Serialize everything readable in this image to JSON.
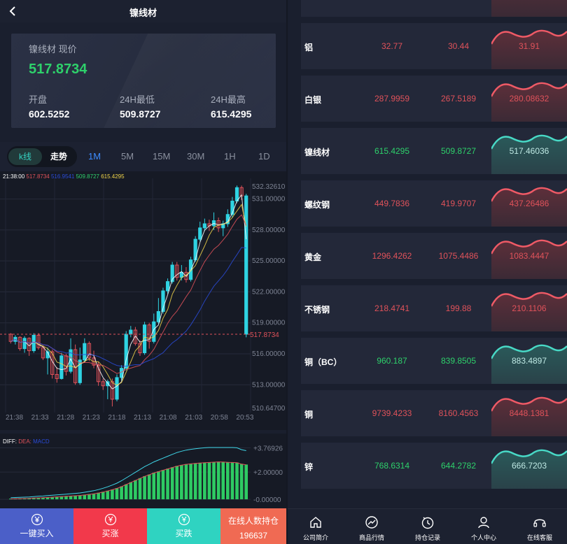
{
  "header": {
    "title": "镍线材",
    "back_label": ""
  },
  "price_card": {
    "label": "镍线材 现价",
    "price": "517.8734",
    "open_label": "开盘",
    "open_value": "602.5252",
    "low_label": "24H最低",
    "low_value": "509.8727",
    "high_label": "24H最高",
    "high_value": "615.4295"
  },
  "chart_tabs": {
    "segment": [
      "k线",
      "走势"
    ],
    "timeframes": [
      "1M",
      "5M",
      "15M",
      "30M",
      "1H",
      "1D"
    ],
    "active_timeframe": "1M"
  },
  "chart_legend": {
    "time": "21:38:00",
    "items": [
      {
        "text": "517.8734",
        "color": "#e0525a"
      },
      {
        "text": "516.9541",
        "color": "#2a4bd8"
      },
      {
        "text": "509.8727",
        "color": "#2ed16b"
      },
      {
        "text": "615.4295",
        "color": "#f1d54a"
      }
    ]
  },
  "macd_legend": {
    "items": [
      {
        "text": "DIFF:",
        "color": "#ffffff"
      },
      {
        "text": "DEA:",
        "color": "#e0525a"
      },
      {
        "text": "MACD",
        "color": "#2a4bd8"
      }
    ]
  },
  "chart_data": [
    {
      "type": "candlestick",
      "title": "",
      "x_tick_labels": [
        "21:38",
        "21:33",
        "21:28",
        "21:23",
        "21:18",
        "21:13",
        "21:08",
        "21:03",
        "20:58",
        "20:53"
      ],
      "y_tick_labels": [
        "532.32610",
        "531.00000",
        "528.00000",
        "525.00000",
        "522.00000",
        "519.00000",
        "516.00000",
        "513.00000",
        "510.64700"
      ],
      "ylim": [
        510.647,
        532.3261
      ],
      "current_price_label": "517.8734",
      "candles": [
        [
          517.9,
          517.2,
          518.0,
          517.0
        ],
        [
          517.2,
          517.6,
          517.8,
          516.9
        ],
        [
          517.6,
          516.5,
          517.7,
          516.3
        ],
        [
          516.5,
          517.5,
          517.7,
          516.1
        ],
        [
          517.5,
          516.3,
          517.6,
          515.8
        ],
        [
          516.3,
          517.8,
          518.0,
          516.1
        ],
        [
          517.8,
          516.6,
          518.0,
          516.4
        ],
        [
          516.6,
          515.6,
          516.8,
          515.4
        ],
        [
          515.6,
          516.2,
          516.6,
          514.0
        ],
        [
          516.2,
          514.0,
          516.4,
          513.6
        ],
        [
          514.0,
          513.6,
          514.7,
          513.2
        ],
        [
          513.6,
          515.8,
          516.1,
          513.5
        ],
        [
          515.8,
          514.3,
          516.0,
          513.9
        ],
        [
          514.3,
          516.4,
          517.5,
          514.1
        ],
        [
          516.4,
          513.2,
          516.9,
          513.0
        ],
        [
          513.2,
          515.4,
          516.6,
          513.0
        ],
        [
          515.4,
          517.0,
          517.5,
          515.2
        ],
        [
          517.0,
          515.6,
          517.2,
          515.3
        ],
        [
          515.6,
          514.9,
          516.3,
          514.6
        ],
        [
          514.9,
          513.3,
          515.2,
          512.9
        ],
        [
          513.3,
          512.9,
          513.6,
          512.5
        ],
        [
          512.9,
          513.3,
          513.5,
          511.6
        ],
        [
          513.3,
          511.6,
          513.6,
          510.9
        ],
        [
          511.6,
          513.7,
          514.0,
          511.4
        ],
        [
          513.7,
          514.6,
          514.9,
          513.4
        ],
        [
          514.6,
          517.9,
          518.2,
          514.4
        ],
        [
          517.9,
          518.3,
          518.7,
          517.6
        ],
        [
          518.3,
          517.0,
          518.6,
          516.8
        ],
        [
          517.0,
          516.1,
          517.3,
          515.8
        ],
        [
          516.1,
          518.8,
          519.1,
          515.9
        ],
        [
          518.8,
          517.2,
          519.0,
          516.5
        ],
        [
          517.2,
          519.1,
          519.9,
          517.0
        ],
        [
          519.1,
          520.1,
          521.4,
          518.9
        ],
        [
          520.1,
          522.1,
          522.4,
          519.9
        ],
        [
          522.1,
          523.0,
          523.3,
          521.8
        ],
        [
          523.0,
          524.6,
          524.9,
          522.8
        ],
        [
          524.6,
          523.4,
          524.9,
          523.1
        ],
        [
          523.4,
          523.9,
          524.6,
          523.1
        ],
        [
          523.9,
          523.2,
          524.4,
          522.9
        ],
        [
          523.2,
          525.1,
          525.4,
          523.0
        ],
        [
          525.1,
          527.1,
          527.4,
          524.9
        ],
        [
          527.1,
          528.2,
          528.8,
          526.9
        ],
        [
          528.2,
          528.6,
          529.1,
          527.9
        ],
        [
          528.6,
          528.4,
          529.0,
          527.9
        ],
        [
          528.4,
          528.9,
          529.7,
          528.0
        ],
        [
          528.9,
          528.2,
          529.2,
          527.8
        ],
        [
          528.2,
          528.6,
          528.9,
          527.4
        ],
        [
          528.6,
          529.5,
          530.0,
          528.3
        ],
        [
          529.5,
          530.8,
          531.2,
          529.2
        ],
        [
          530.8,
          532.1,
          532.3,
          530.6
        ],
        [
          532.1,
          531.3,
          532.3,
          530.9
        ],
        [
          531.3,
          517.9,
          531.5,
          517.6
        ]
      ],
      "ma_lines": [
        {
          "color": "#ffffff"
        },
        {
          "color": "#f1d54a"
        },
        {
          "color": "#e0525a"
        },
        {
          "color": "#2a4bd8"
        }
      ]
    },
    {
      "type": "bar",
      "title": "",
      "y_tick_labels": [
        "+3.76926",
        "+2.00000",
        "-0.00000"
      ],
      "ylim": [
        -0.2,
        3.9
      ],
      "macd": [
        0.05,
        0.06,
        0.07,
        0.08,
        0.09,
        0.11,
        0.13,
        0.14,
        0.16,
        0.18,
        0.2,
        0.22,
        0.24,
        0.26,
        0.28,
        0.3,
        0.34,
        0.38,
        0.42,
        0.48,
        0.55,
        0.63,
        0.72,
        0.82,
        0.95,
        1.1,
        1.25,
        1.4,
        1.55,
        1.7,
        1.82,
        1.95,
        2.05,
        2.15,
        2.25,
        2.35,
        2.45,
        2.52,
        2.58,
        2.62,
        2.65,
        2.68,
        2.7,
        2.72,
        2.74,
        2.76,
        2.75,
        2.73,
        2.72,
        2.7,
        2.6,
        2.55
      ]
    }
  ],
  "actions": {
    "buy_one_click": "一键买入",
    "buy_up": "买涨",
    "buy_down": "买跌",
    "online_label": "在线人数持仓",
    "online_count": "196637"
  },
  "markets": [
    {
      "name": "铝",
      "v1": "32.77",
      "v2": "30.44",
      "spark_val": "31.91",
      "trend": "red"
    },
    {
      "name": "白银",
      "v1": "287.9959",
      "v2": "267.5189",
      "spark_val": "280.08632",
      "trend": "red"
    },
    {
      "name": "镍线材",
      "v1": "615.4295",
      "v2": "509.8727",
      "spark_val": "517.46036",
      "trend": "green"
    },
    {
      "name": "螺纹钢",
      "v1": "449.7836",
      "v2": "419.9707",
      "spark_val": "437.26486",
      "trend": "red"
    },
    {
      "name": "黄金",
      "v1": "1296.4262",
      "v2": "1075.4486",
      "spark_val": "1083.4447",
      "trend": "red"
    },
    {
      "name": "不锈钢",
      "v1": "218.4741",
      "v2": "199.88",
      "spark_val": "210.1106",
      "trend": "red"
    },
    {
      "name": "铜（BC）",
      "v1": "960.187",
      "v2": "839.8505",
      "spark_val": "883.4897",
      "trend": "green"
    },
    {
      "name": "铜",
      "v1": "9739.4233",
      "v2": "8160.4563",
      "spark_val": "8448.1381",
      "trend": "red"
    },
    {
      "name": "锌",
      "v1": "768.6314",
      "v2": "644.2782",
      "spark_val": "666.7203",
      "trend": "green"
    }
  ],
  "tabbar": [
    {
      "label": "公司简介",
      "icon": "home-icon"
    },
    {
      "label": "商品行情",
      "icon": "market-icon"
    },
    {
      "label": "持仓记录",
      "icon": "clock-icon"
    },
    {
      "label": "个人中心",
      "icon": "user-icon"
    },
    {
      "label": "在线客服",
      "icon": "headset-icon"
    }
  ],
  "colors": {
    "up": "#2ed16b",
    "down": "#e0525a",
    "accent": "#3d8cff",
    "teal": "#35d3c3"
  }
}
